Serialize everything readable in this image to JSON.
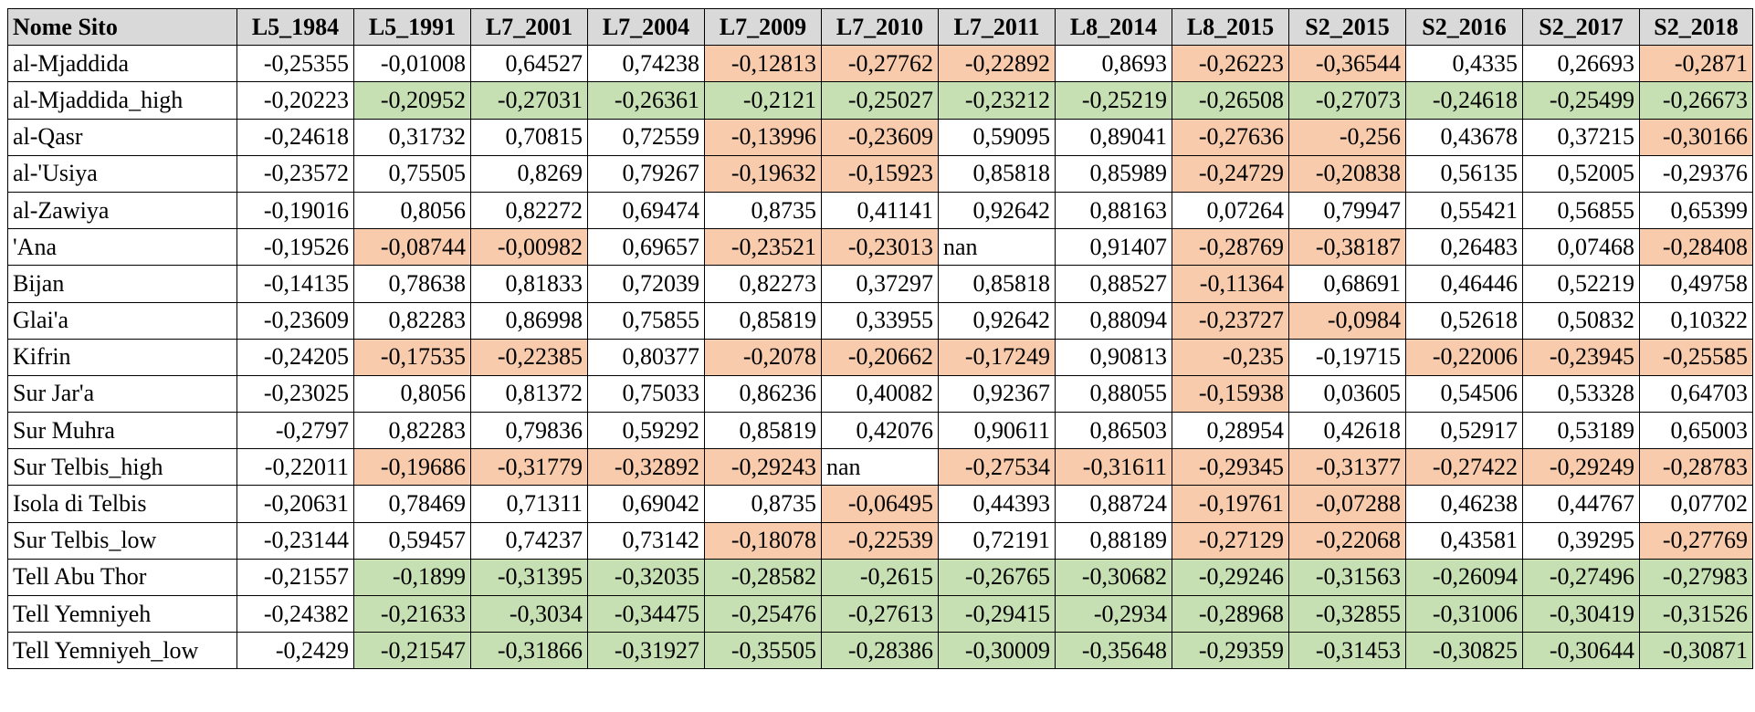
{
  "colors": {
    "header_bg": "#d9d9d9",
    "orange": "#f8cbad",
    "green": "#c6e0b4"
  },
  "headers": [
    "Nome Sito",
    "L5_1984",
    "L5_1991",
    "L7_2001",
    "L7_2004",
    "L7_2009",
    "L7_2010",
    "L7_2011",
    "L8_2014",
    "L8_2015",
    "S2_2015",
    "S2_2016",
    "S2_2017",
    "S2_2018"
  ],
  "rows": [
    {
      "name": "al-Mjaddida",
      "cells": [
        {
          "v": "-0,25355",
          "h": ""
        },
        {
          "v": "-0,01008",
          "h": ""
        },
        {
          "v": "0,64527",
          "h": ""
        },
        {
          "v": "0,74238",
          "h": ""
        },
        {
          "v": "-0,12813",
          "h": "orange"
        },
        {
          "v": "-0,27762",
          "h": "orange"
        },
        {
          "v": "-0,22892",
          "h": "orange"
        },
        {
          "v": "0,8693",
          "h": ""
        },
        {
          "v": "-0,26223",
          "h": "orange"
        },
        {
          "v": "-0,36544",
          "h": "orange"
        },
        {
          "v": "0,4335",
          "h": ""
        },
        {
          "v": "0,26693",
          "h": ""
        },
        {
          "v": "-0,2871",
          "h": "orange"
        }
      ]
    },
    {
      "name": "al-Mjaddida_high",
      "cells": [
        {
          "v": "-0,20223",
          "h": ""
        },
        {
          "v": "-0,20952",
          "h": "green"
        },
        {
          "v": "-0,27031",
          "h": "green"
        },
        {
          "v": "-0,26361",
          "h": "green"
        },
        {
          "v": "-0,2121",
          "h": "green"
        },
        {
          "v": "-0,25027",
          "h": "green"
        },
        {
          "v": "-0,23212",
          "h": "green"
        },
        {
          "v": "-0,25219",
          "h": "green"
        },
        {
          "v": "-0,26508",
          "h": "green"
        },
        {
          "v": "-0,27073",
          "h": "green"
        },
        {
          "v": "-0,24618",
          "h": "green"
        },
        {
          "v": "-0,25499",
          "h": "green"
        },
        {
          "v": "-0,26673",
          "h": "green"
        }
      ]
    },
    {
      "name": "al-Qasr",
      "cells": [
        {
          "v": "-0,24618",
          "h": ""
        },
        {
          "v": "0,31732",
          "h": ""
        },
        {
          "v": "0,70815",
          "h": ""
        },
        {
          "v": "0,72559",
          "h": ""
        },
        {
          "v": "-0,13996",
          "h": "orange"
        },
        {
          "v": "-0,23609",
          "h": "orange"
        },
        {
          "v": "0,59095",
          "h": ""
        },
        {
          "v": "0,89041",
          "h": ""
        },
        {
          "v": "-0,27636",
          "h": "orange"
        },
        {
          "v": "-0,256",
          "h": "orange"
        },
        {
          "v": "0,43678",
          "h": ""
        },
        {
          "v": "0,37215",
          "h": ""
        },
        {
          "v": "-0,30166",
          "h": "orange"
        }
      ]
    },
    {
      "name": "al-'Usiya",
      "cells": [
        {
          "v": "-0,23572",
          "h": ""
        },
        {
          "v": "0,75505",
          "h": ""
        },
        {
          "v": "0,8269",
          "h": ""
        },
        {
          "v": "0,79267",
          "h": ""
        },
        {
          "v": "-0,19632",
          "h": "orange"
        },
        {
          "v": "-0,15923",
          "h": "orange"
        },
        {
          "v": "0,85818",
          "h": ""
        },
        {
          "v": "0,85989",
          "h": ""
        },
        {
          "v": "-0,24729",
          "h": "orange"
        },
        {
          "v": "-0,20838",
          "h": "orange"
        },
        {
          "v": "0,56135",
          "h": ""
        },
        {
          "v": "0,52005",
          "h": ""
        },
        {
          "v": "-0,29376",
          "h": ""
        }
      ]
    },
    {
      "name": "al-Zawiya",
      "cells": [
        {
          "v": "-0,19016",
          "h": ""
        },
        {
          "v": "0,8056",
          "h": ""
        },
        {
          "v": "0,82272",
          "h": ""
        },
        {
          "v": "0,69474",
          "h": ""
        },
        {
          "v": "0,8735",
          "h": ""
        },
        {
          "v": "0,41141",
          "h": ""
        },
        {
          "v": "0,92642",
          "h": ""
        },
        {
          "v": "0,88163",
          "h": ""
        },
        {
          "v": "0,07264",
          "h": ""
        },
        {
          "v": "0,79947",
          "h": ""
        },
        {
          "v": "0,55421",
          "h": ""
        },
        {
          "v": "0,56855",
          "h": ""
        },
        {
          "v": "0,65399",
          "h": ""
        }
      ]
    },
    {
      "name": "'Ana",
      "cells": [
        {
          "v": "-0,19526",
          "h": ""
        },
        {
          "v": "-0,08744",
          "h": "orange"
        },
        {
          "v": "-0,00982",
          "h": "orange"
        },
        {
          "v": "0,69657",
          "h": ""
        },
        {
          "v": "-0,23521",
          "h": "orange"
        },
        {
          "v": "-0,23013",
          "h": "orange"
        },
        {
          "v": "nan",
          "h": "",
          "t": true
        },
        {
          "v": "0,91407",
          "h": ""
        },
        {
          "v": "-0,28769",
          "h": "orange"
        },
        {
          "v": "-0,38187",
          "h": "orange"
        },
        {
          "v": "0,26483",
          "h": ""
        },
        {
          "v": "0,07468",
          "h": ""
        },
        {
          "v": "-0,28408",
          "h": "orange"
        }
      ]
    },
    {
      "name": "Bijan",
      "cells": [
        {
          "v": "-0,14135",
          "h": ""
        },
        {
          "v": "0,78638",
          "h": ""
        },
        {
          "v": "0,81833",
          "h": ""
        },
        {
          "v": "0,72039",
          "h": ""
        },
        {
          "v": "0,82273",
          "h": ""
        },
        {
          "v": "0,37297",
          "h": ""
        },
        {
          "v": "0,85818",
          "h": ""
        },
        {
          "v": "0,88527",
          "h": ""
        },
        {
          "v": "-0,11364",
          "h": "orange"
        },
        {
          "v": "0,68691",
          "h": ""
        },
        {
          "v": "0,46446",
          "h": ""
        },
        {
          "v": "0,52219",
          "h": ""
        },
        {
          "v": "0,49758",
          "h": ""
        }
      ]
    },
    {
      "name": "Glai'a",
      "cells": [
        {
          "v": "-0,23609",
          "h": ""
        },
        {
          "v": "0,82283",
          "h": ""
        },
        {
          "v": "0,86998",
          "h": ""
        },
        {
          "v": "0,75855",
          "h": ""
        },
        {
          "v": "0,85819",
          "h": ""
        },
        {
          "v": "0,33955",
          "h": ""
        },
        {
          "v": "0,92642",
          "h": ""
        },
        {
          "v": "0,88094",
          "h": ""
        },
        {
          "v": "-0,23727",
          "h": "orange"
        },
        {
          "v": "-0,0984",
          "h": "orange"
        },
        {
          "v": "0,52618",
          "h": ""
        },
        {
          "v": "0,50832",
          "h": ""
        },
        {
          "v": "0,10322",
          "h": ""
        }
      ]
    },
    {
      "name": "Kifrin",
      "cells": [
        {
          "v": "-0,24205",
          "h": ""
        },
        {
          "v": "-0,17535",
          "h": "orange"
        },
        {
          "v": "-0,22385",
          "h": "orange"
        },
        {
          "v": "0,80377",
          "h": ""
        },
        {
          "v": "-0,2078",
          "h": "orange"
        },
        {
          "v": "-0,20662",
          "h": "orange"
        },
        {
          "v": "-0,17249",
          "h": "orange"
        },
        {
          "v": "0,90813",
          "h": ""
        },
        {
          "v": "-0,235",
          "h": "orange"
        },
        {
          "v": "-0,19715",
          "h": ""
        },
        {
          "v": "-0,22006",
          "h": "orange"
        },
        {
          "v": "-0,23945",
          "h": "orange"
        },
        {
          "v": "-0,25585",
          "h": "orange"
        }
      ]
    },
    {
      "name": "Sur Jar'a",
      "cells": [
        {
          "v": "-0,23025",
          "h": ""
        },
        {
          "v": "0,8056",
          "h": ""
        },
        {
          "v": "0,81372",
          "h": ""
        },
        {
          "v": "0,75033",
          "h": ""
        },
        {
          "v": "0,86236",
          "h": ""
        },
        {
          "v": "0,40082",
          "h": ""
        },
        {
          "v": "0,92367",
          "h": ""
        },
        {
          "v": "0,88055",
          "h": ""
        },
        {
          "v": "-0,15938",
          "h": "orange"
        },
        {
          "v": "0,03605",
          "h": ""
        },
        {
          "v": "0,54506",
          "h": ""
        },
        {
          "v": "0,53328",
          "h": ""
        },
        {
          "v": "0,64703",
          "h": ""
        }
      ]
    },
    {
      "name": "Sur Muhra",
      "cells": [
        {
          "v": "-0,2797",
          "h": ""
        },
        {
          "v": "0,82283",
          "h": ""
        },
        {
          "v": "0,79836",
          "h": ""
        },
        {
          "v": "0,59292",
          "h": ""
        },
        {
          "v": "0,85819",
          "h": ""
        },
        {
          "v": "0,42076",
          "h": ""
        },
        {
          "v": "0,90611",
          "h": ""
        },
        {
          "v": "0,86503",
          "h": ""
        },
        {
          "v": "0,28954",
          "h": ""
        },
        {
          "v": "0,42618",
          "h": ""
        },
        {
          "v": "0,52917",
          "h": ""
        },
        {
          "v": "0,53189",
          "h": ""
        },
        {
          "v": "0,65003",
          "h": ""
        }
      ]
    },
    {
      "name": "Sur Telbis_high",
      "cells": [
        {
          "v": "-0,22011",
          "h": ""
        },
        {
          "v": "-0,19686",
          "h": "orange"
        },
        {
          "v": "-0,31779",
          "h": "orange"
        },
        {
          "v": "-0,32892",
          "h": "orange"
        },
        {
          "v": "-0,29243",
          "h": "orange"
        },
        {
          "v": "nan",
          "h": "",
          "t": true
        },
        {
          "v": "-0,27534",
          "h": "orange"
        },
        {
          "v": "-0,31611",
          "h": "orange"
        },
        {
          "v": "-0,29345",
          "h": "orange"
        },
        {
          "v": "-0,31377",
          "h": "orange"
        },
        {
          "v": "-0,27422",
          "h": "orange"
        },
        {
          "v": "-0,29249",
          "h": "orange"
        },
        {
          "v": "-0,28783",
          "h": "orange"
        }
      ]
    },
    {
      "name": "Isola di Telbis",
      "cells": [
        {
          "v": "-0,20631",
          "h": ""
        },
        {
          "v": "0,78469",
          "h": ""
        },
        {
          "v": "0,71311",
          "h": ""
        },
        {
          "v": "0,69042",
          "h": ""
        },
        {
          "v": "0,8735",
          "h": ""
        },
        {
          "v": "-0,06495",
          "h": "orange"
        },
        {
          "v": "0,44393",
          "h": ""
        },
        {
          "v": "0,88724",
          "h": ""
        },
        {
          "v": "-0,19761",
          "h": "orange"
        },
        {
          "v": "-0,07288",
          "h": "orange"
        },
        {
          "v": "0,46238",
          "h": ""
        },
        {
          "v": "0,44767",
          "h": ""
        },
        {
          "v": "0,07702",
          "h": ""
        }
      ]
    },
    {
      "name": "Sur Telbis_low",
      "cells": [
        {
          "v": "-0,23144",
          "h": ""
        },
        {
          "v": "0,59457",
          "h": ""
        },
        {
          "v": "0,74237",
          "h": ""
        },
        {
          "v": "0,73142",
          "h": ""
        },
        {
          "v": "-0,18078",
          "h": "orange"
        },
        {
          "v": "-0,22539",
          "h": "orange"
        },
        {
          "v": "0,72191",
          "h": ""
        },
        {
          "v": "0,88189",
          "h": ""
        },
        {
          "v": "-0,27129",
          "h": "orange"
        },
        {
          "v": "-0,22068",
          "h": "orange"
        },
        {
          "v": "0,43581",
          "h": ""
        },
        {
          "v": "0,39295",
          "h": ""
        },
        {
          "v": "-0,27769",
          "h": "orange"
        }
      ]
    },
    {
      "name": "Tell Abu Thor",
      "cells": [
        {
          "v": "-0,21557",
          "h": ""
        },
        {
          "v": "-0,1899",
          "h": "green"
        },
        {
          "v": "-0,31395",
          "h": "green"
        },
        {
          "v": "-0,32035",
          "h": "green"
        },
        {
          "v": "-0,28582",
          "h": "green"
        },
        {
          "v": "-0,2615",
          "h": "green"
        },
        {
          "v": "-0,26765",
          "h": "green"
        },
        {
          "v": "-0,30682",
          "h": "green"
        },
        {
          "v": "-0,29246",
          "h": "green"
        },
        {
          "v": "-0,31563",
          "h": "green"
        },
        {
          "v": "-0,26094",
          "h": "green"
        },
        {
          "v": "-0,27496",
          "h": "green"
        },
        {
          "v": "-0,27983",
          "h": "green"
        }
      ]
    },
    {
      "name": "Tell Yemniyeh",
      "cells": [
        {
          "v": "-0,24382",
          "h": ""
        },
        {
          "v": "-0,21633",
          "h": "green"
        },
        {
          "v": "-0,3034",
          "h": "green"
        },
        {
          "v": "-0,34475",
          "h": "green"
        },
        {
          "v": "-0,25476",
          "h": "green"
        },
        {
          "v": "-0,27613",
          "h": "green"
        },
        {
          "v": "-0,29415",
          "h": "green"
        },
        {
          "v": "-0,2934",
          "h": "green"
        },
        {
          "v": "-0,28968",
          "h": "green"
        },
        {
          "v": "-0,32855",
          "h": "green"
        },
        {
          "v": "-0,31006",
          "h": "green"
        },
        {
          "v": "-0,30419",
          "h": "green"
        },
        {
          "v": "-0,31526",
          "h": "green"
        }
      ]
    },
    {
      "name": "Tell Yemniyeh_low",
      "cells": [
        {
          "v": "-0,2429",
          "h": ""
        },
        {
          "v": "-0,21547",
          "h": "green"
        },
        {
          "v": "-0,31866",
          "h": "green"
        },
        {
          "v": "-0,31927",
          "h": "green"
        },
        {
          "v": "-0,35505",
          "h": "green"
        },
        {
          "v": "-0,28386",
          "h": "green"
        },
        {
          "v": "-0,30009",
          "h": "green"
        },
        {
          "v": "-0,35648",
          "h": "green"
        },
        {
          "v": "-0,29359",
          "h": "green"
        },
        {
          "v": "-0,31453",
          "h": "green"
        },
        {
          "v": "-0,30825",
          "h": "green"
        },
        {
          "v": "-0,30644",
          "h": "green"
        },
        {
          "v": "-0,30871",
          "h": "green"
        }
      ]
    }
  ]
}
